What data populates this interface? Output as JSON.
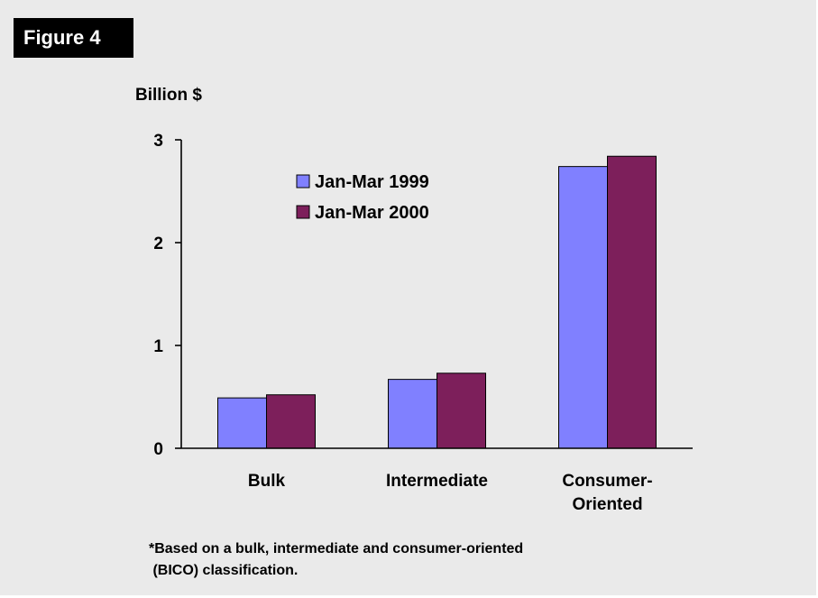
{
  "figure_label": "Figure 4",
  "footnote_lines": [
    "*Based on a bulk, intermediate and consumer-oriented",
    " (BICO) classification."
  ],
  "colors": {
    "series1": "#8080ff",
    "series2": "#7d1f5b",
    "background": "#eaeaea"
  },
  "chart_data": {
    "type": "bar",
    "ylabel": "Billion $",
    "xlabel": "",
    "ylim": [
      0,
      3
    ],
    "yticks": [
      "0",
      "1",
      "2",
      "3"
    ],
    "categories": [
      [
        "Bulk"
      ],
      [
        "Intermediate"
      ],
      [
        "Consumer-",
        "Oriented"
      ]
    ],
    "series": [
      {
        "name": "Jan-Mar 1999",
        "values": [
          0.49,
          0.67,
          2.74
        ],
        "color": "#8080ff"
      },
      {
        "name": "Jan-Mar 2000",
        "values": [
          0.52,
          0.73,
          2.84
        ],
        "color": "#7d1f5b"
      }
    ],
    "grid": false,
    "legend": "upper-left"
  }
}
